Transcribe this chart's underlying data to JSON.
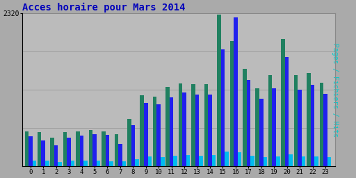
{
  "title": "Acces horaire pour Mars 2014",
  "ylabel": "Pages / Fichiers / Hits",
  "hours": [
    0,
    1,
    2,
    3,
    4,
    5,
    6,
    7,
    8,
    9,
    10,
    11,
    12,
    13,
    14,
    15,
    16,
    17,
    18,
    19,
    20,
    21,
    22,
    23
  ],
  "pages": [
    530,
    520,
    430,
    510,
    530,
    550,
    530,
    480,
    720,
    1080,
    1060,
    1200,
    1260,
    1250,
    1250,
    2300,
    1900,
    1480,
    1180,
    1380,
    1930,
    1380,
    1420,
    1270
  ],
  "fichiers": [
    450,
    390,
    310,
    430,
    460,
    480,
    470,
    340,
    620,
    960,
    940,
    1040,
    1120,
    1090,
    1090,
    1780,
    2260,
    1310,
    1020,
    1180,
    1660,
    1160,
    1240,
    1100
  ],
  "hits": [
    80,
    80,
    60,
    80,
    80,
    80,
    70,
    70,
    100,
    140,
    130,
    160,
    170,
    160,
    170,
    220,
    210,
    150,
    130,
    140,
    180,
    140,
    140,
    130
  ],
  "color_pages": "#208060",
  "color_fichiers": "#2020EE",
  "color_hits": "#00BBEE",
  "bg_color": "#AAAAAA",
  "plot_bg": "#BBBBBB",
  "ylim": [
    0,
    2320
  ],
  "ytick_val": 2320,
  "title_color": "#0000BB",
  "ylabel_color": "#00CCCC",
  "bar_width": 0.3,
  "title_fontsize": 10,
  "ylabel_fontsize": 7
}
